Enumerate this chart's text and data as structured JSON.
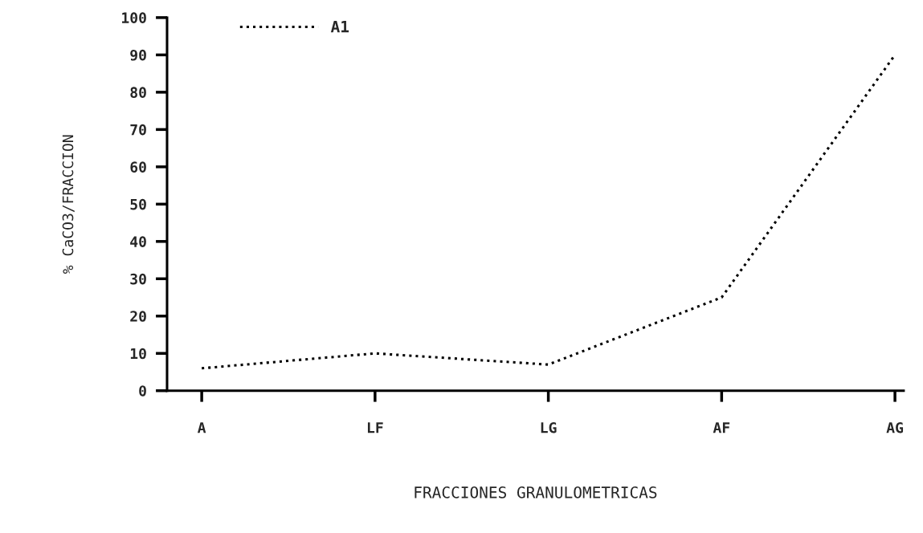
{
  "chart_data": {
    "type": "line",
    "xlabel": "FRACCIONES GRANULOMETRICAS",
    "ylabel": "% CaCO3/FRACCION",
    "categories": [
      "A",
      "LF",
      "LG",
      "AF",
      "AG"
    ],
    "series": [
      {
        "name": "A1",
        "color": "#000000",
        "values": [
          6,
          10,
          7,
          25,
          90
        ]
      }
    ],
    "ylim": [
      0,
      100
    ],
    "yticks": [
      0,
      10,
      20,
      30,
      40,
      50,
      60,
      70,
      80,
      90,
      100
    ],
    "line_style": "dotted",
    "marker": "none",
    "grid": false,
    "legend": "top left"
  }
}
